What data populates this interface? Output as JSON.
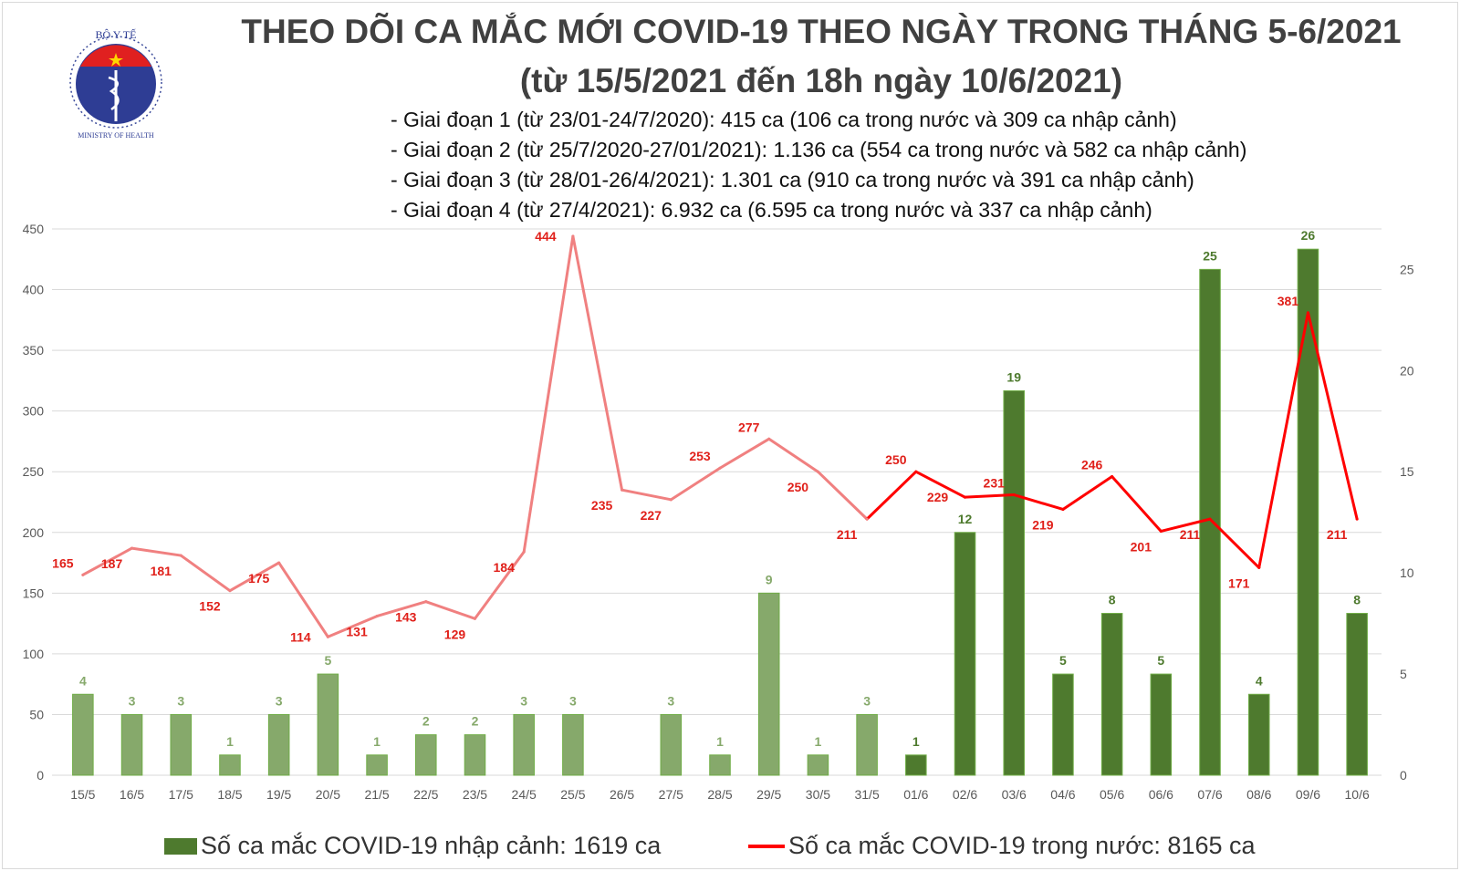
{
  "logo": {
    "top_text": "BỘ Y TẾ",
    "bottom_text": "MINISTRY OF HEALTH"
  },
  "header": {
    "title_line1": "THEO DÕI CA MẮC MỚI COVID-19 THEO NGÀY TRONG THÁNG 5-6/2021",
    "title_line2": "(từ 15/5/2021 đến 18h ngày 10/6/2021)",
    "phases": [
      "- Giai đoạn 1 (từ 23/01-24/7/2020): 415 ca (106 ca trong nước và 309 ca nhập cảnh)",
      "- Giai đoạn 2 (từ 25/7/2020-27/01/2021): 1.136 ca (554 ca trong nước và 582 ca nhập cảnh)",
      "- Giai đoạn 3 (từ 28/01-26/4/2021): 1.301 ca (910 ca trong nước và 391 ca nhập cảnh)",
      "- Giai đoạn 4 (từ 27/4/2021): 6.932 ca (6.595 ca trong nước và 337 ca nhập cảnh)"
    ]
  },
  "chart_data": {
    "type": "bar+line",
    "categories": [
      "15/5",
      "16/5",
      "17/5",
      "18/5",
      "19/5",
      "20/5",
      "21/5",
      "22/5",
      "23/5",
      "24/5",
      "25/5",
      "26/5",
      "27/5",
      "28/5",
      "29/5",
      "30/5",
      "31/5",
      "01/6",
      "02/6",
      "03/6",
      "04/6",
      "05/6",
      "06/6",
      "07/6",
      "08/6",
      "09/6",
      "10/6"
    ],
    "series": [
      {
        "name": "Số ca mắc COVID-19 nhập cảnh: 1619 ca",
        "type": "bar",
        "axis": "right",
        "values": [
          4,
          3,
          3,
          1,
          3,
          5,
          1,
          2,
          2,
          3,
          3,
          null,
          3,
          1,
          9,
          1,
          3,
          1,
          12,
          19,
          5,
          8,
          5,
          25,
          4,
          26,
          8
        ],
        "color": "#4e7a2e",
        "color_earlier": "#86a96b"
      },
      {
        "name": "Số ca mắc COVID-19 trong nước: 8165 ca",
        "type": "line",
        "axis": "left",
        "values": [
          165,
          187,
          181,
          152,
          175,
          114,
          131,
          143,
          129,
          184,
          444,
          235,
          227,
          253,
          277,
          250,
          211,
          250,
          229,
          231,
          219,
          246,
          201,
          211,
          171,
          381,
          211
        ],
        "color": "#ff0000",
        "color_earlier": "#f08080"
      }
    ],
    "left_axis": {
      "ylim": [
        0,
        450
      ],
      "ticks": [
        0,
        50,
        100,
        150,
        200,
        250,
        300,
        350,
        400,
        450
      ]
    },
    "right_axis": {
      "ylim": [
        0,
        27
      ],
      "ticks": [
        0,
        5,
        10,
        15,
        20,
        25
      ]
    },
    "grid": true,
    "legend_position": "bottom"
  }
}
